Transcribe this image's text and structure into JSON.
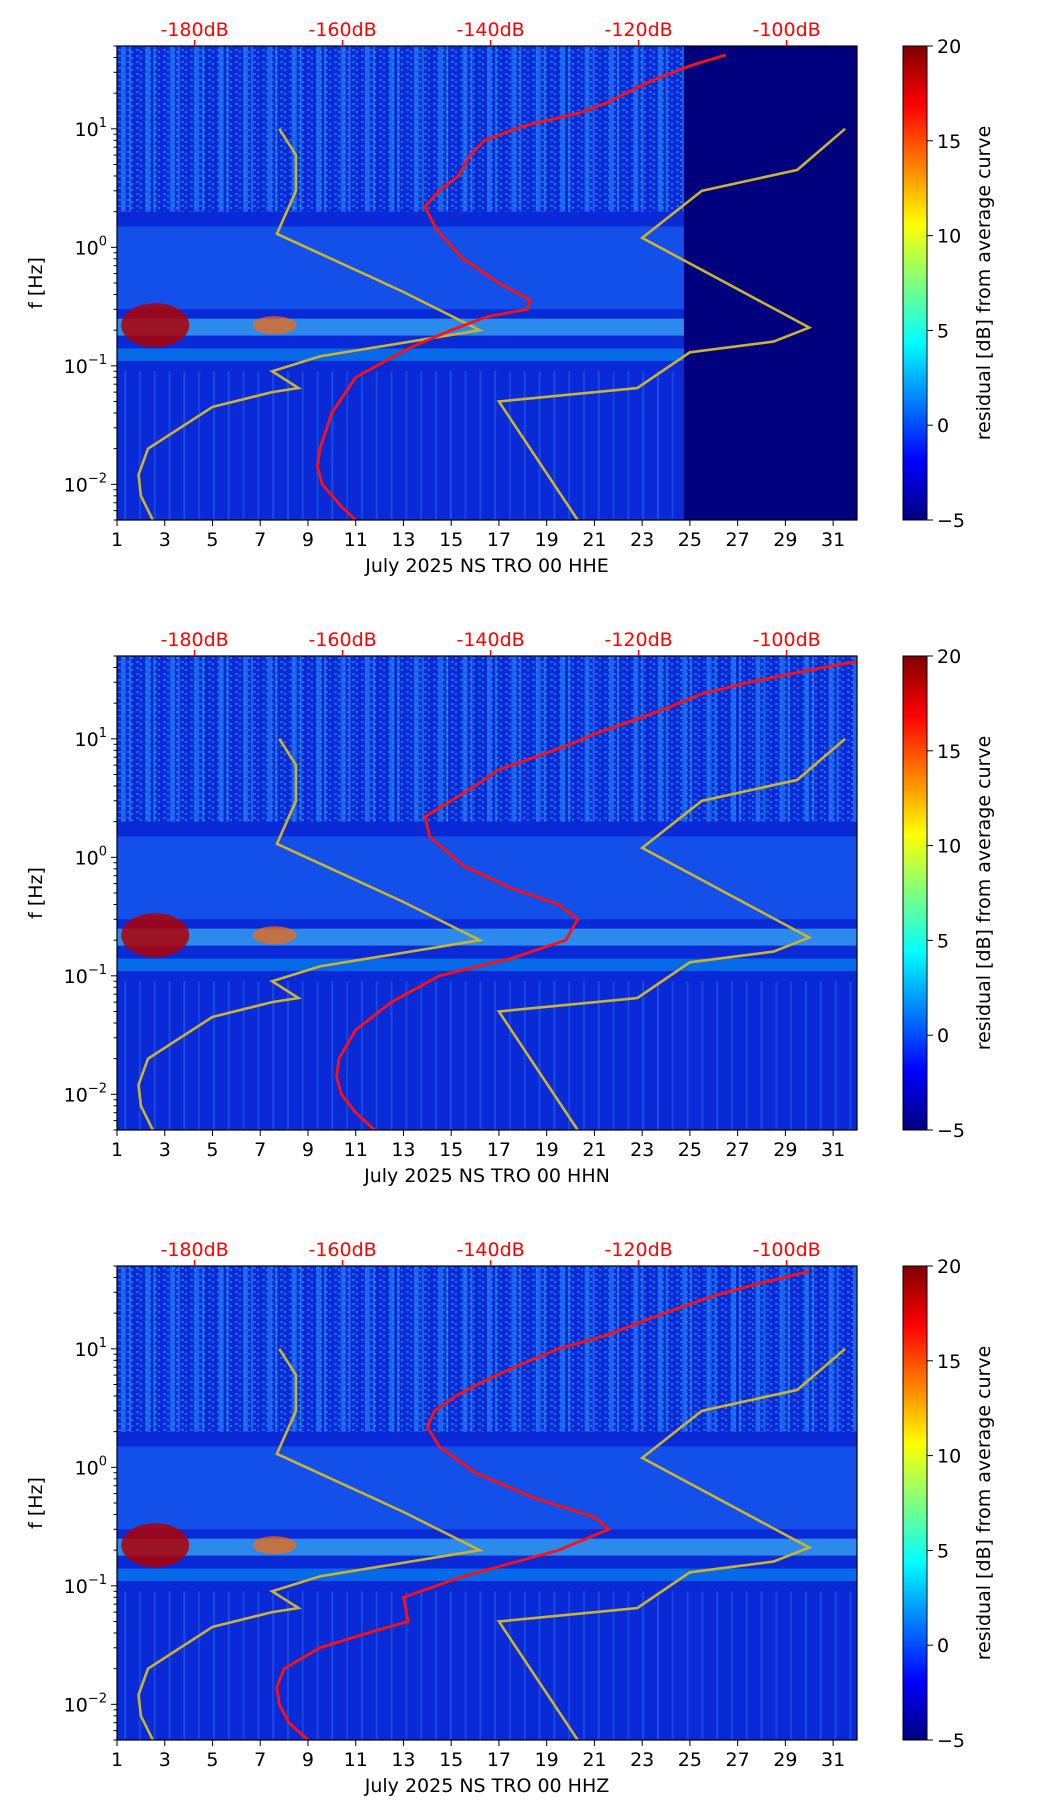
{
  "colors": {
    "plot_background": "#00007f",
    "psd_curve": "#ff1010",
    "noise_model": "#c8b432",
    "db_labels": "#ff0000",
    "colormap": [
      "#00007f",
      "#0000ff",
      "#007fff",
      "#00ffff",
      "#7fff7f",
      "#ffff00",
      "#ff7f00",
      "#ff0000",
      "#7f0000"
    ]
  },
  "chart_data": [
    {
      "type": "heatmap",
      "xlabel": "July 2025 NS TRO 00 HHE",
      "ylabel": "f [Hz]",
      "colorbar_label": "residual [dB] from average curve",
      "colorbar_ticks": [
        "20",
        "15",
        "10",
        "5",
        "0",
        "−5"
      ],
      "colorbar_values": [
        20,
        15,
        10,
        5,
        0,
        -5
      ],
      "clim": [
        -5,
        20
      ],
      "x_range": [
        1,
        32
      ],
      "x_ticks": [
        "1",
        "3",
        "5",
        "7",
        "9",
        "11",
        "13",
        "15",
        "17",
        "19",
        "21",
        "23",
        "25",
        "27",
        "29",
        "31"
      ],
      "x_tick_values": [
        1,
        3,
        5,
        7,
        9,
        11,
        13,
        15,
        17,
        19,
        21,
        23,
        25,
        27,
        29,
        31
      ],
      "y_scale": "log",
      "y_range": [
        0.005,
        50
      ],
      "y_tick_labels": [
        {
          "mantissa": "10",
          "exp": "1",
          "value": 10
        },
        {
          "mantissa": "10",
          "exp": "0",
          "value": 1
        },
        {
          "mantissa": "10",
          "exp": "−1",
          "value": 0.1
        },
        {
          "mantissa": "10",
          "exp": "−2",
          "value": 0.01
        }
      ],
      "db_axis": {
        "labels": [
          "-180dB",
          "-160dB",
          "-140dB",
          "-120dB",
          "-100dB"
        ],
        "db_values": [
          -180,
          -160,
          -140,
          -120,
          -100
        ],
        "at_day": [
          4.25,
          10.45,
          16.65,
          22.85,
          29.05
        ]
      },
      "data_gap_from_day": 24.75,
      "psd_curve": {
        "name": "average PSD",
        "x_day": [
          11.0,
          10.4,
          9.6,
          9.4,
          9.5,
          10.0,
          11.0,
          13.2,
          15.0,
          16.5,
          18.2,
          18.3,
          17.0,
          15.5,
          14.4,
          13.9,
          14.5,
          15.3,
          15.8,
          16.4,
          18.0,
          19.2,
          20.3,
          21.5,
          22.3,
          23.5,
          25.0,
          26.5
        ],
        "f_hz": [
          0.005,
          0.0065,
          0.01,
          0.014,
          0.02,
          0.04,
          0.08,
          0.14,
          0.2,
          0.26,
          0.3,
          0.36,
          0.5,
          0.8,
          1.4,
          2.2,
          3.0,
          4.0,
          6.0,
          8.0,
          10.5,
          12.0,
          13.5,
          16.5,
          20.0,
          26.0,
          34.0,
          42.0
        ]
      },
      "noise_model": {
        "name": "noise model",
        "segments": [
          {
            "x_day": [
              2.5,
              2.0,
              1.9,
              2.3,
              5.0,
              7.5,
              8.6,
              7.5,
              9.5,
              16.2,
              13.0,
              7.7,
              8.5,
              8.5,
              7.8
            ],
            "f_hz": [
              0.005,
              0.008,
              0.012,
              0.02,
              0.045,
              0.06,
              0.065,
              0.09,
              0.12,
              0.2,
              0.42,
              1.3,
              3.0,
              6.0,
              10.0
            ]
          },
          {
            "x_day": [
              20.3,
              17.0,
              22.8,
              25.0,
              28.5,
              30.0,
              23.0,
              25.5,
              29.5,
              31.5
            ],
            "f_hz": [
              0.005,
              0.05,
              0.065,
              0.13,
              0.16,
              0.21,
              1.2,
              3.0,
              4.5,
              10.0
            ]
          }
        ]
      }
    },
    {
      "type": "heatmap",
      "xlabel": "July 2025 NS TRO 00 HHN",
      "ylabel": "f [Hz]",
      "colorbar_label": "residual [dB] from average curve",
      "colorbar_ticks": [
        "20",
        "15",
        "10",
        "5",
        "0",
        "−5"
      ],
      "colorbar_values": [
        20,
        15,
        10,
        5,
        0,
        -5
      ],
      "clim": [
        -5,
        20
      ],
      "x_range": [
        1,
        32
      ],
      "x_ticks": [
        "1",
        "3",
        "5",
        "7",
        "9",
        "11",
        "13",
        "15",
        "17",
        "19",
        "21",
        "23",
        "25",
        "27",
        "29",
        "31"
      ],
      "x_tick_values": [
        1,
        3,
        5,
        7,
        9,
        11,
        13,
        15,
        17,
        19,
        21,
        23,
        25,
        27,
        29,
        31
      ],
      "y_scale": "log",
      "y_range": [
        0.005,
        50
      ],
      "y_tick_labels": [
        {
          "mantissa": "10",
          "exp": "1",
          "value": 10
        },
        {
          "mantissa": "10",
          "exp": "0",
          "value": 1
        },
        {
          "mantissa": "10",
          "exp": "−1",
          "value": 0.1
        },
        {
          "mantissa": "10",
          "exp": "−2",
          "value": 0.01
        }
      ],
      "db_axis": {
        "labels": [
          "-180dB",
          "-160dB",
          "-140dB",
          "-120dB",
          "-100dB"
        ],
        "db_values": [
          -180,
          -160,
          -140,
          -120,
          -100
        ],
        "at_day": [
          4.25,
          10.45,
          16.65,
          22.85,
          29.05
        ]
      },
      "data_gap_from_day": null,
      "psd_curve": {
        "name": "average PSD",
        "x_day": [
          11.8,
          11.0,
          10.4,
          10.2,
          10.3,
          11.0,
          12.5,
          14.5,
          17.5,
          19.8,
          20.3,
          19.5,
          17.5,
          15.5,
          14.1,
          13.9,
          15.0,
          16.0,
          17.0,
          18.5,
          20.0,
          21.0,
          22.5,
          24.0,
          25.5,
          27.5,
          30.0,
          32.0
        ],
        "f_hz": [
          0.005,
          0.007,
          0.01,
          0.014,
          0.02,
          0.035,
          0.06,
          0.1,
          0.14,
          0.2,
          0.3,
          0.4,
          0.55,
          0.85,
          1.5,
          2.2,
          3.0,
          4.0,
          5.5,
          7.0,
          9.0,
          11.0,
          14.0,
          18.0,
          24.0,
          30.0,
          38.0,
          45.0
        ]
      },
      "noise_model": {
        "name": "noise model",
        "segments": [
          {
            "x_day": [
              2.5,
              2.0,
              1.9,
              2.3,
              5.0,
              7.5,
              8.6,
              7.5,
              9.5,
              16.2,
              13.0,
              7.7,
              8.5,
              8.5,
              7.8
            ],
            "f_hz": [
              0.005,
              0.008,
              0.012,
              0.02,
              0.045,
              0.06,
              0.065,
              0.09,
              0.12,
              0.2,
              0.42,
              1.3,
              3.0,
              6.0,
              10.0
            ]
          },
          {
            "x_day": [
              20.3,
              17.0,
              22.8,
              25.0,
              28.5,
              30.0,
              23.0,
              25.5,
              29.5,
              31.5
            ],
            "f_hz": [
              0.005,
              0.05,
              0.065,
              0.13,
              0.16,
              0.21,
              1.2,
              3.0,
              4.5,
              10.0
            ]
          }
        ]
      }
    },
    {
      "type": "heatmap",
      "xlabel": "July 2025 NS TRO 00 HHZ",
      "ylabel": "f [Hz]",
      "colorbar_label": "residual [dB] from average curve",
      "colorbar_ticks": [
        "20",
        "15",
        "10",
        "5",
        "0",
        "−5"
      ],
      "colorbar_values": [
        20,
        15,
        10,
        5,
        0,
        -5
      ],
      "clim": [
        -5,
        20
      ],
      "x_range": [
        1,
        32
      ],
      "x_ticks": [
        "1",
        "3",
        "5",
        "7",
        "9",
        "11",
        "13",
        "15",
        "17",
        "19",
        "21",
        "23",
        "25",
        "27",
        "29",
        "31"
      ],
      "x_tick_values": [
        1,
        3,
        5,
        7,
        9,
        11,
        13,
        15,
        17,
        19,
        21,
        23,
        25,
        27,
        29,
        31
      ],
      "y_scale": "log",
      "y_range": [
        0.005,
        50
      ],
      "y_tick_labels": [
        {
          "mantissa": "10",
          "exp": "1",
          "value": 10
        },
        {
          "mantissa": "10",
          "exp": "0",
          "value": 1
        },
        {
          "mantissa": "10",
          "exp": "−1",
          "value": 0.1
        },
        {
          "mantissa": "10",
          "exp": "−2",
          "value": 0.01
        }
      ],
      "db_axis": {
        "labels": [
          "-180dB",
          "-160dB",
          "-140dB",
          "-120dB",
          "-100dB"
        ],
        "db_values": [
          -180,
          -160,
          -140,
          -120,
          -100
        ],
        "at_day": [
          4.25,
          10.45,
          16.65,
          22.85,
          29.05
        ]
      },
      "data_gap_from_day": null,
      "psd_curve": {
        "name": "average PSD",
        "x_day": [
          9.0,
          8.2,
          7.8,
          7.7,
          8.0,
          9.5,
          11.5,
          13.2,
          13.0,
          15.5,
          19.5,
          21.6,
          21.0,
          18.5,
          16.0,
          14.5,
          14.0,
          14.3,
          15.2,
          16.5,
          18.0,
          19.5,
          21.5,
          23.0,
          24.5,
          26.0,
          28.0,
          30.0
        ],
        "f_hz": [
          0.005,
          0.007,
          0.01,
          0.014,
          0.02,
          0.03,
          0.04,
          0.05,
          0.08,
          0.12,
          0.2,
          0.3,
          0.38,
          0.55,
          0.9,
          1.5,
          2.2,
          3.0,
          4.0,
          5.5,
          7.5,
          10.0,
          13.0,
          17.0,
          22.0,
          28.0,
          36.0,
          45.0
        ]
      },
      "noise_model": {
        "name": "noise model",
        "segments": [
          {
            "x_day": [
              2.5,
              2.0,
              1.9,
              2.3,
              5.0,
              7.5,
              8.6,
              7.5,
              9.5,
              16.2,
              13.0,
              7.7,
              8.5,
              8.5,
              7.8
            ],
            "f_hz": [
              0.005,
              0.008,
              0.012,
              0.02,
              0.045,
              0.06,
              0.065,
              0.09,
              0.12,
              0.2,
              0.42,
              1.3,
              3.0,
              6.0,
              10.0
            ]
          },
          {
            "x_day": [
              20.3,
              17.0,
              22.8,
              25.0,
              28.5,
              30.0,
              23.0,
              25.5,
              29.5,
              31.5
            ],
            "f_hz": [
              0.005,
              0.05,
              0.065,
              0.13,
              0.16,
              0.21,
              1.2,
              3.0,
              4.5,
              10.0
            ]
          }
        ]
      }
    }
  ]
}
